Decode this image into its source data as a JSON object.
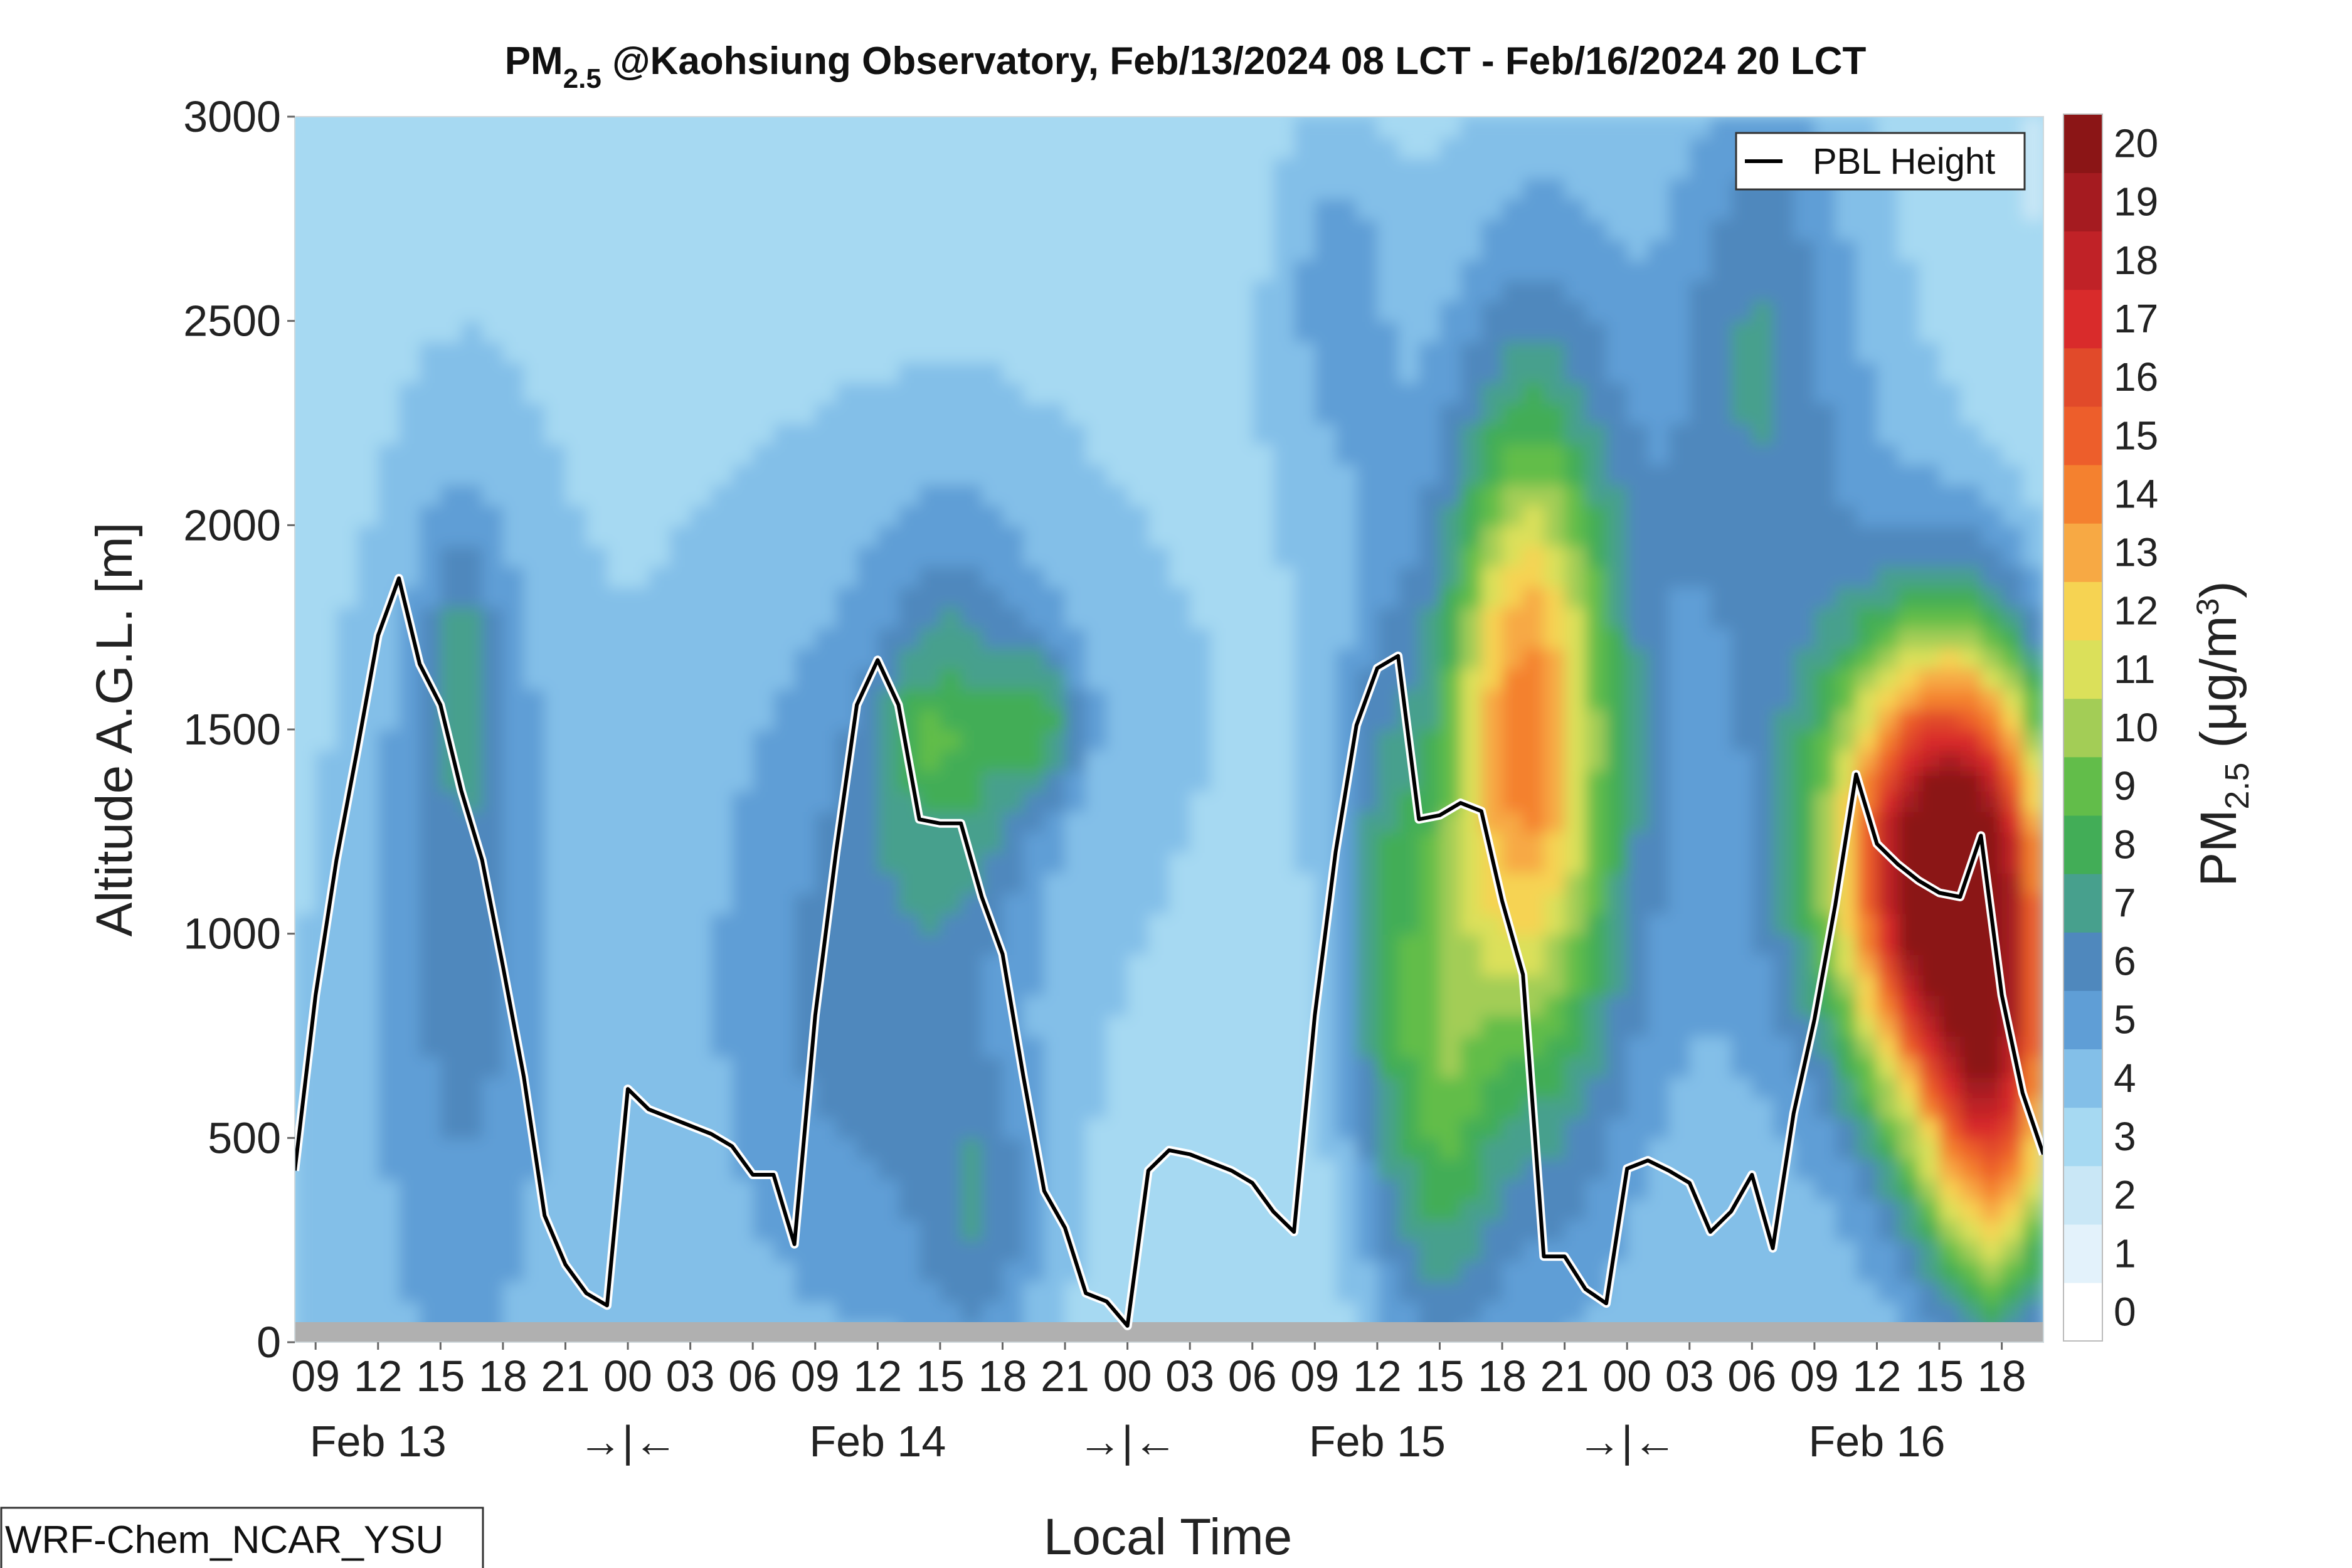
{
  "chart_data": {
    "type": "heatmap",
    "title_main": "PM",
    "title_sub": "2.5",
    "title_rest": " @Kaohsiung Observatory, Feb/13/2024 08 LCT - Feb/16/2024 20 LCT",
    "xlabel": "Local Time",
    "ylabel": "Altitude A.G.L. [m]",
    "colorbar_label_main": "PM",
    "colorbar_label_sub": "2.5",
    "colorbar_label_unit": " (μg/m",
    "colorbar_label_sup": "3",
    "colorbar_label_close": ")",
    "legend_label": "PBL Height",
    "model_tag": "WRF-Chem_NCAR_YSU",
    "x_range": [
      0,
      84
    ],
    "ylim": [
      0,
      3000
    ],
    "y_ticks": [
      0,
      500,
      1000,
      1500,
      2000,
      2500,
      3000
    ],
    "y_tick_labels": [
      "0",
      "500",
      "1000",
      "1500",
      "2000",
      "2500",
      "3000"
    ],
    "x_ticks": [
      1,
      4,
      7,
      10,
      13,
      16,
      19,
      22,
      25,
      28,
      31,
      34,
      37,
      40,
      43,
      46,
      49,
      52,
      55,
      58,
      61,
      64,
      67,
      70,
      73,
      76,
      79,
      82
    ],
    "x_tick_labels": [
      "09",
      "12",
      "15",
      "18",
      "21",
      "00",
      "03",
      "06",
      "09",
      "12",
      "15",
      "18",
      "21",
      "00",
      "03",
      "06",
      "09",
      "12",
      "15",
      "18",
      "21",
      "00",
      "03",
      "06",
      "09",
      "12",
      "15",
      "18"
    ],
    "day_labels": [
      {
        "x": 4,
        "text": "Feb 13"
      },
      {
        "x": 28,
        "text": "Feb 14"
      },
      {
        "x": 52,
        "text": "Feb 15"
      },
      {
        "x": 76,
        "text": "Feb 16"
      }
    ],
    "midnight_marks": [
      {
        "x": 16,
        "text": "→|←"
      },
      {
        "x": 40,
        "text": "→|←"
      },
      {
        "x": 64,
        "text": "→|←"
      }
    ],
    "colorbar_levels": [
      0,
      1,
      2,
      3,
      4,
      5,
      6,
      7,
      8,
      9,
      10,
      11,
      12,
      13,
      14,
      15,
      16,
      17,
      18,
      19,
      20
    ],
    "colorbar_colors": [
      "#ffffff",
      "#e3f2fb",
      "#c9e7f6",
      "#a6d9f2",
      "#83bfe8",
      "#5f9ed6",
      "#4f88bd",
      "#47a08d",
      "#42ad57",
      "#62bd4a",
      "#a3cd56",
      "#dbe05a",
      "#f6d352",
      "#f7a944",
      "#f4812f",
      "#ed5e2b",
      "#e14a2a",
      "#d92b2b",
      "#c02227",
      "#a51b20",
      "#8b1516"
    ],
    "pbl_height": {
      "name": "PBL Height",
      "x": [
        0,
        1,
        2,
        3,
        4,
        5,
        6,
        7,
        8,
        9,
        10,
        11,
        12,
        13,
        14,
        15,
        16,
        17,
        18,
        19,
        20,
        21,
        22,
        23,
        24,
        25,
        26,
        27,
        28,
        29,
        30,
        31,
        32,
        33,
        34,
        35,
        36,
        37,
        38,
        39,
        40,
        41,
        42,
        43,
        44,
        45,
        46,
        47,
        48,
        49,
        50,
        51,
        52,
        53,
        54,
        55,
        56,
        57,
        58,
        59,
        60,
        61,
        62,
        63,
        64,
        65,
        66,
        67,
        68,
        69,
        70,
        71,
        72,
        73,
        74,
        75,
        76,
        77,
        78,
        79,
        80,
        81,
        82,
        83,
        84
      ],
      "y": [
        420,
        850,
        1180,
        1450,
        1730,
        1870,
        1660,
        1560,
        1350,
        1180,
        920,
        650,
        310,
        190,
        120,
        90,
        620,
        570,
        550,
        530,
        510,
        480,
        410,
        410,
        240,
        800,
        1200,
        1560,
        1670,
        1560,
        1280,
        1270,
        1270,
        1090,
        950,
        650,
        370,
        280,
        120,
        100,
        40,
        420,
        470,
        460,
        440,
        420,
        390,
        320,
        270,
        800,
        1200,
        1510,
        1650,
        1680,
        1280,
        1290,
        1320,
        1300,
        1080,
        900,
        210,
        210,
        130,
        95,
        425,
        445,
        420,
        390,
        270,
        320,
        410,
        230,
        560,
        790,
        1070,
        1390,
        1220,
        1170,
        1130,
        1100,
        1090,
        1240,
        850,
        610,
        460
      ]
    }
  }
}
